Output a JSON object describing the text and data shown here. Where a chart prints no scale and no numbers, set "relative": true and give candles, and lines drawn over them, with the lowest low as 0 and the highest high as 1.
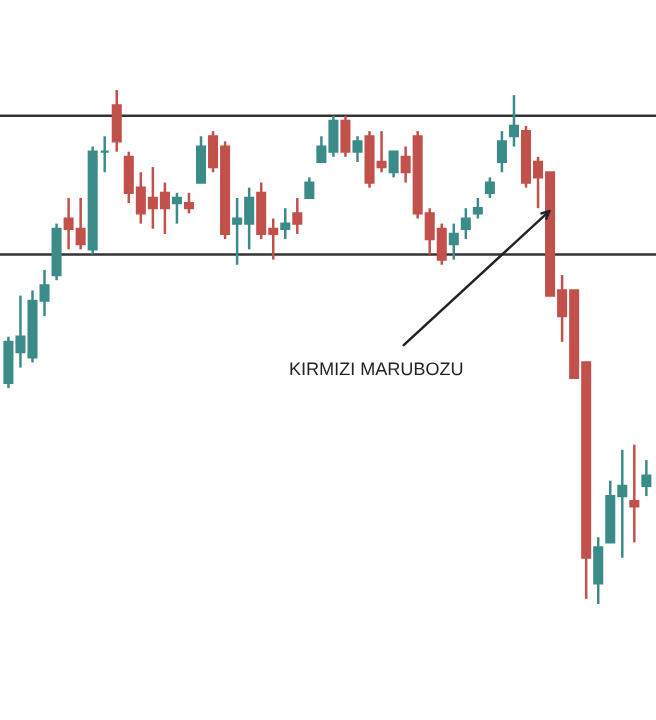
{
  "chart_data": {
    "type": "candlestick",
    "relative": true,
    "tick_labels": false,
    "categories": [
      null,
      null,
      null,
      null,
      null,
      null,
      null,
      null,
      null,
      null,
      null,
      null,
      null,
      null,
      null,
      null,
      null,
      null,
      null,
      null,
      null,
      null,
      null,
      null,
      null,
      null,
      null,
      null,
      null,
      null,
      null,
      null,
      null,
      null,
      null,
      null,
      null,
      null,
      null,
      null,
      null,
      null,
      null,
      null,
      null,
      null,
      null,
      null,
      null,
      null,
      null,
      null,
      null,
      null
    ],
    "ohlc": [
      [
        0.43,
        0.52,
        0.42,
        0.51
      ],
      [
        0.49,
        0.6,
        0.46,
        0.52
      ],
      [
        0.48,
        0.61,
        0.47,
        0.59
      ],
      [
        0.59,
        0.65,
        0.56,
        0.62
      ],
      [
        0.64,
        0.74,
        0.63,
        0.73
      ],
      [
        0.75,
        0.79,
        0.69,
        0.73
      ],
      [
        0.73,
        0.79,
        0.69,
        0.7
      ],
      [
        0.69,
        0.89,
        0.68,
        0.88
      ],
      [
        0.88,
        0.91,
        0.84,
        0.88
      ],
      [
        0.97,
        1.0,
        0.88,
        0.9
      ],
      [
        0.87,
        0.88,
        0.78,
        0.8
      ],
      [
        0.81,
        0.84,
        0.74,
        0.76
      ],
      [
        0.79,
        0.85,
        0.73,
        0.77
      ],
      [
        0.8,
        0.82,
        0.72,
        0.77
      ],
      [
        0.78,
        0.8,
        0.74,
        0.79
      ],
      [
        0.78,
        0.8,
        0.76,
        0.77
      ],
      [
        0.82,
        0.91,
        0.82,
        0.89
      ],
      [
        0.91,
        0.92,
        0.84,
        0.85
      ],
      [
        0.89,
        0.9,
        0.71,
        0.72
      ],
      [
        0.74,
        0.79,
        0.66,
        0.75
      ],
      [
        0.74,
        0.81,
        0.69,
        0.79
      ],
      [
        0.8,
        0.82,
        0.71,
        0.72
      ],
      [
        0.73,
        0.75,
        0.67,
        0.72
      ],
      [
        0.73,
        0.77,
        0.71,
        0.74
      ],
      [
        0.76,
        0.79,
        0.72,
        0.74
      ],
      [
        0.79,
        0.83,
        0.79,
        0.82
      ],
      [
        0.86,
        0.91,
        0.86,
        0.89
      ],
      [
        0.88,
        0.95,
        0.87,
        0.94
      ],
      [
        0.94,
        0.95,
        0.87,
        0.88
      ],
      [
        0.88,
        0.91,
        0.86,
        0.9
      ],
      [
        0.91,
        0.92,
        0.81,
        0.82
      ],
      [
        0.86,
        0.92,
        0.84,
        0.85
      ],
      [
        0.84,
        0.88,
        0.83,
        0.88
      ],
      [
        0.87,
        0.89,
        0.82,
        0.84
      ],
      [
        0.91,
        0.92,
        0.75,
        0.76
      ],
      [
        0.76,
        0.77,
        0.68,
        0.71
      ],
      [
        0.73,
        0.74,
        0.66,
        0.67
      ],
      [
        0.7,
        0.74,
        0.67,
        0.72
      ],
      [
        0.73,
        0.77,
        0.71,
        0.75
      ],
      [
        0.76,
        0.79,
        0.75,
        0.77
      ],
      [
        0.8,
        0.83,
        0.79,
        0.82
      ],
      [
        0.86,
        0.92,
        0.84,
        0.9
      ],
      [
        0.91,
        0.99,
        0.89,
        0.93
      ],
      [
        0.92,
        0.93,
        0.81,
        0.82
      ],
      [
        0.86,
        0.87,
        0.77,
        0.83
      ],
      [
        0.84,
        0.84,
        0.6,
        0.6
      ],
      [
        0.61,
        0.64,
        0.51,
        0.56
      ],
      [
        0.61,
        0.61,
        0.44,
        0.44
      ],
      [
        0.47,
        0.47,
        0.01,
        0.09
      ],
      [
        0.04,
        0.13,
        0.0,
        0.11
      ],
      [
        0.12,
        0.24,
        0.12,
        0.21
      ],
      [
        0.21,
        0.3,
        0.09,
        0.23
      ],
      [
        0.2,
        0.31,
        0.12,
        0.19
      ],
      [
        0.23,
        0.28,
        0.21,
        0.25
      ]
    ],
    "colors": [
      "#3b8c88",
      "#3b8c88",
      "#3b8c88",
      "#3b8c88",
      "#3b8c88",
      "#c2504b",
      "#c2504b",
      "#3b8c88",
      "#3b8c88",
      "#c2504b",
      "#c2504b",
      "#c2504b",
      "#c2504b",
      "#c2504b",
      "#3b8c88",
      "#c2504b",
      "#3b8c88",
      "#c2504b",
      "#c2504b",
      "#3b8c88",
      "#3b8c88",
      "#c2504b",
      "#c2504b",
      "#3b8c88",
      "#c2504b",
      "#3b8c88",
      "#3b8c88",
      "#3b8c88",
      "#c2504b",
      "#3b8c88",
      "#c2504b",
      "#c2504b",
      "#3b8c88",
      "#c2504b",
      "#c2504b",
      "#c2504b",
      "#c2504b",
      "#3b8c88",
      "#3b8c88",
      "#3b8c88",
      "#3b8c88",
      "#3b8c88",
      "#3b8c88",
      "#c2504b",
      "#c2504b",
      "#c2504b",
      "#c2504b",
      "#c2504b",
      "#c2504b",
      "#3b8c88",
      "#3b8c88",
      "#3b8c88",
      "#c2504b",
      "#3b8c88"
    ],
    "ref_lines": [
      {
        "axis": "y",
        "value": 0.95,
        "color": "#333333"
      },
      {
        "axis": "y",
        "value": 0.68,
        "color": "#333333"
      }
    ],
    "annotations": [
      "KIRMIZI MARUBOZU"
    ]
  }
}
